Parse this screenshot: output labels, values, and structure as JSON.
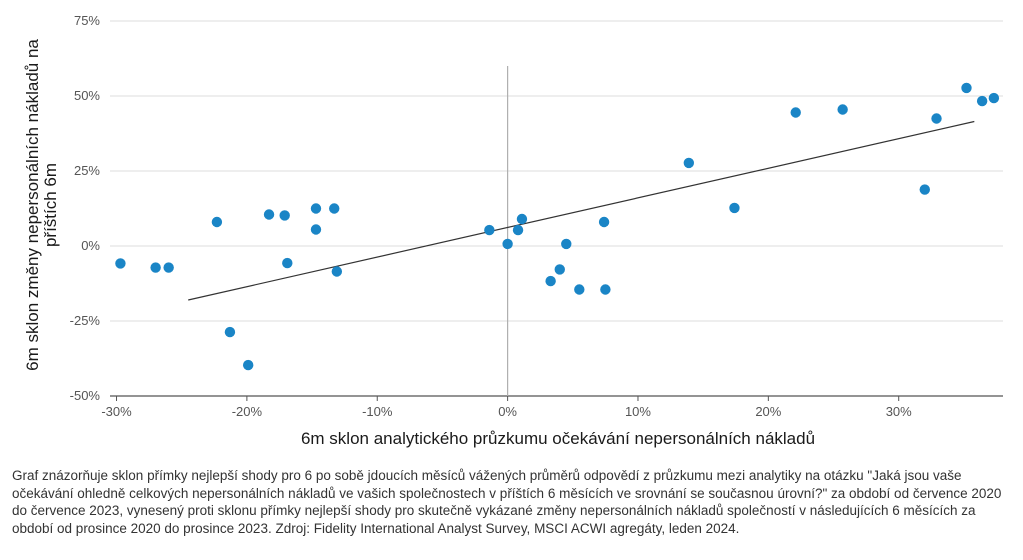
{
  "chart_data": {
    "type": "scatter",
    "xlabel": "6m sklon analytického průzkumu očekávání nepersonálních nákladů",
    "ylabel_lines": [
      "6m sklon změny nepersonálních nákladů na",
      "příštích 6m"
    ],
    "xlim": [
      -0.305,
      0.38
    ],
    "ylim": [
      -0.5,
      0.75
    ],
    "x_ticks": [
      -0.3,
      -0.2,
      -0.1,
      0,
      0.1,
      0.2,
      0.3
    ],
    "x_tick_labels": [
      "-30%",
      "-20%",
      "-10%",
      "0%",
      "10%",
      "20%",
      "30%"
    ],
    "y_ticks": [
      -0.5,
      -0.25,
      0,
      0.25,
      0.5,
      0.75
    ],
    "y_tick_labels": [
      "-50%",
      "-25%",
      "0%",
      "25%",
      "50%",
      "75%"
    ],
    "grid": {
      "horizontal": true,
      "vertical": false
    },
    "zero_line_vertical": {
      "x": 0,
      "y_from": -0.5,
      "y_to": 0.6
    },
    "point_color": "#1a85c6",
    "trend_color": "#333333",
    "trendline": {
      "x": [
        -0.245,
        0.358
      ],
      "y": [
        -0.18,
        0.415
      ]
    },
    "points": [
      {
        "x": -0.297,
        "y": -0.058
      },
      {
        "x": -0.27,
        "y": -0.072
      },
      {
        "x": -0.26,
        "y": -0.072
      },
      {
        "x": -0.223,
        "y": 0.08
      },
      {
        "x": -0.213,
        "y": -0.287
      },
      {
        "x": -0.199,
        "y": -0.397
      },
      {
        "x": -0.183,
        "y": 0.105
      },
      {
        "x": -0.171,
        "y": 0.102
      },
      {
        "x": -0.169,
        "y": -0.057
      },
      {
        "x": -0.147,
        "y": 0.125
      },
      {
        "x": -0.147,
        "y": 0.055
      },
      {
        "x": -0.133,
        "y": 0.125
      },
      {
        "x": -0.131,
        "y": -0.085
      },
      {
        "x": -0.014,
        "y": 0.053
      },
      {
        "x": 0.0,
        "y": 0.007
      },
      {
        "x": 0.008,
        "y": 0.053
      },
      {
        "x": 0.011,
        "y": 0.09
      },
      {
        "x": 0.033,
        "y": -0.117
      },
      {
        "x": 0.04,
        "y": -0.078
      },
      {
        "x": 0.045,
        "y": 0.007
      },
      {
        "x": 0.055,
        "y": -0.145
      },
      {
        "x": 0.074,
        "y": 0.08
      },
      {
        "x": 0.075,
        "y": -0.145
      },
      {
        "x": 0.139,
        "y": 0.277
      },
      {
        "x": 0.174,
        "y": 0.127
      },
      {
        "x": 0.221,
        "y": 0.445
      },
      {
        "x": 0.257,
        "y": 0.455
      },
      {
        "x": 0.32,
        "y": 0.188
      },
      {
        "x": 0.329,
        "y": 0.425
      },
      {
        "x": 0.352,
        "y": 0.527
      },
      {
        "x": 0.364,
        "y": 0.483
      },
      {
        "x": 0.373,
        "y": 0.493
      }
    ]
  },
  "caption": "Graf znázorňuje sklon přímky nejlepší shody pro 6 po sobě jdoucích měsíců vážených průměrů odpovědí z průzkumu mezi analytiky na otázku \"Jaká jsou vaše očekávání ohledně celkových nepersonálních nákladů ve vašich společnostech v příštích 6 měsících ve srovnání se současnou úrovní?\" za období od července 2020 do července 2023, vynesený proti sklonu přímky nejlepší shody pro skutečně vykázané změny nepersonálních nákladů společností v následujících 6 měsících za období od prosince 2020 do prosince 2023. Zdroj: Fidelity International Analyst Survey, MSCI ACWI agregáty, leden 2024."
}
